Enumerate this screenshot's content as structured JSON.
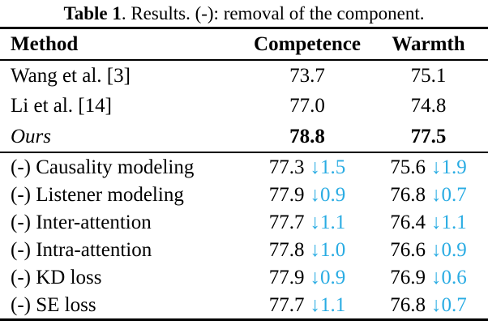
{
  "caption": {
    "label": "Table 1",
    "text": ". Results. (-): removal of the component."
  },
  "colors": {
    "accent": "#2AACE3",
    "text": "#000000",
    "background": "#FFFFFF"
  },
  "icons": {
    "down_arrow": "↓"
  },
  "table": {
    "columns": {
      "method": "Method",
      "competence": "Competence",
      "warmth": "Warmth"
    },
    "baseline_rows": [
      {
        "method": "Wang et al. [3]",
        "competence": "73.7",
        "warmth": "75.1"
      },
      {
        "method": "Li et al. [14]",
        "competence": "77.0",
        "warmth": "74.8"
      },
      {
        "method": "Ours",
        "competence": "78.8",
        "warmth": "77.5"
      }
    ],
    "ablation_rows": [
      {
        "method": "(-) Causality modeling",
        "competence": "77.3",
        "competence_delta": "↓1.5",
        "warmth": "75.6",
        "warmth_delta": "↓1.9"
      },
      {
        "method": "(-) Listener modeling",
        "competence": "77.9",
        "competence_delta": "↓0.9",
        "warmth": "76.8",
        "warmth_delta": "↓0.7"
      },
      {
        "method": "(-) Inter-attention",
        "competence": "77.7",
        "competence_delta": "↓1.1",
        "warmth": "76.4",
        "warmth_delta": "↓1.1"
      },
      {
        "method": "(-) Intra-attention",
        "competence": "77.8",
        "competence_delta": "↓1.0",
        "warmth": "76.6",
        "warmth_delta": "↓0.9"
      },
      {
        "method": "(-) KD loss",
        "competence": "77.9",
        "competence_delta": "↓0.9",
        "warmth": "76.9",
        "warmth_delta": "↓0.6"
      },
      {
        "method": "(-) SE loss",
        "competence": "77.7",
        "competence_delta": "↓1.1",
        "warmth": "76.8",
        "warmth_delta": "↓0.7"
      }
    ]
  }
}
